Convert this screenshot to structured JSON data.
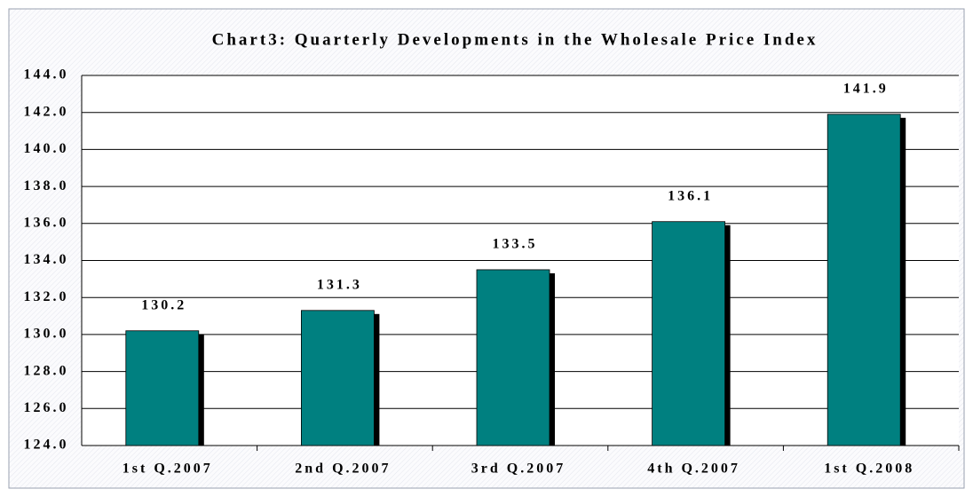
{
  "chart_data": {
    "type": "bar",
    "title": "Chart3: Quarterly Developments in the Wholesale Price Index",
    "categories": [
      "1st Q.2007",
      "2nd Q.2007",
      "3rd Q.2007",
      "4th Q.2007",
      "1st Q.2008"
    ],
    "values": [
      130.2,
      131.3,
      133.5,
      136.1,
      141.9
    ],
    "color": "#008080",
    "ylim": [
      124,
      144
    ],
    "yticks": [
      {
        "value": 124,
        "label": "124.0"
      },
      {
        "value": 126,
        "label": "126.0"
      },
      {
        "value": 128,
        "label": "128.0"
      },
      {
        "value": 130,
        "label": "130.0"
      },
      {
        "value": 132,
        "label": "132.0"
      },
      {
        "value": 134,
        "label": "134.0"
      },
      {
        "value": 136,
        "label": "136.0"
      },
      {
        "value": 138,
        "label": "138.0"
      },
      {
        "value": 140,
        "label": "140.0"
      },
      {
        "value": 142,
        "label": "142.0"
      },
      {
        "value": 144,
        "label": "144.0"
      }
    ],
    "grid": true
  }
}
